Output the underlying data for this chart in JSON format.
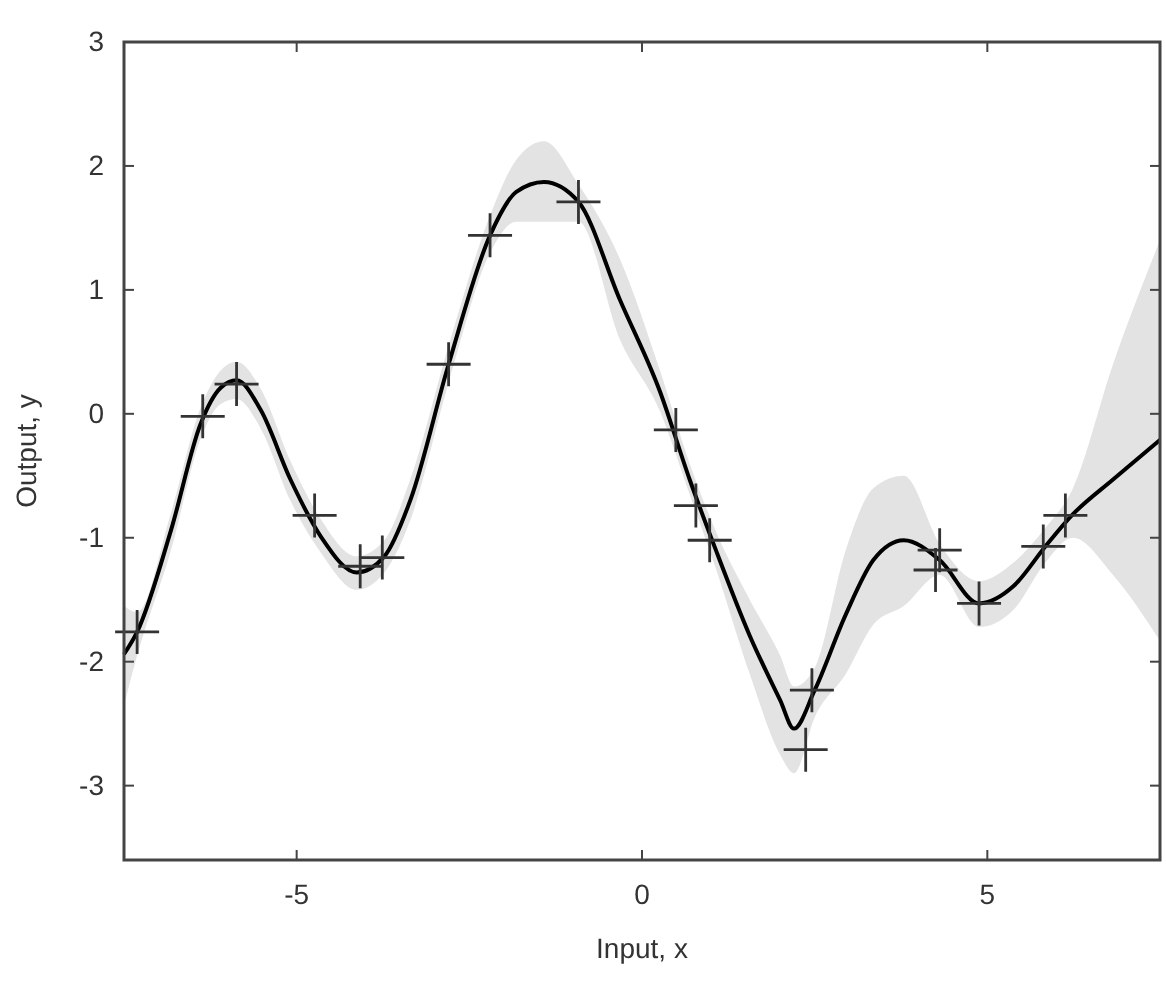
{
  "chart_data": {
    "type": "line",
    "xlabel": "Input, x",
    "ylabel": "Output, y",
    "xlim": [
      -7.5,
      7.5
    ],
    "ylim": [
      -3.6,
      3
    ],
    "xticks": [
      -5,
      0,
      5
    ],
    "yticks": [
      -3,
      -2,
      -1,
      0,
      1,
      2,
      3
    ],
    "grid": false,
    "series": [
      {
        "color": "#000000",
        "marker": "none",
        "line_style": "solid",
        "x": [
          -7.5,
          -7.31,
          -6.82,
          -6.39,
          -6.1,
          -5.87,
          -5.52,
          -5.09,
          -4.65,
          -4.13,
          -3.73,
          -3.35,
          -2.8,
          -2.2,
          -1.82,
          -1.42,
          -0.92,
          -0.32,
          0.26,
          0.69,
          1.07,
          1.56,
          2.0,
          2.2,
          2.5,
          2.95,
          3.35,
          3.79,
          4.31,
          4.88,
          5.38,
          5.84,
          6.24,
          6.82,
          7.5
        ],
        "values": [
          -1.94,
          -1.76,
          -0.94,
          -0.08,
          0.21,
          0.27,
          0.03,
          -0.53,
          -0.99,
          -1.28,
          -1.15,
          -0.69,
          0.4,
          1.44,
          1.79,
          1.87,
          1.71,
          0.92,
          0.18,
          -0.53,
          -1.1,
          -1.79,
          -2.31,
          -2.54,
          -2.23,
          -1.62,
          -1.18,
          -1.02,
          -1.18,
          -1.53,
          -1.39,
          -1.07,
          -0.81,
          -0.53,
          -0.21
        ],
        "lower": [
          -2.35,
          -1.95,
          -1.1,
          -0.2,
          0.08,
          0.12,
          -0.12,
          -0.7,
          -1.12,
          -1.42,
          -1.28,
          -0.85,
          0.25,
          1.3,
          1.55,
          1.55,
          1.55,
          0.6,
          0.02,
          -0.65,
          -1.25,
          -2.1,
          -2.75,
          -2.9,
          -2.45,
          -2.1,
          -1.7,
          -1.55,
          -1.3,
          -1.72,
          -1.58,
          -1.2,
          -1.0,
          -1.3,
          -1.83
        ],
        "upper": [
          -1.55,
          -1.6,
          -0.8,
          0.05,
          0.35,
          0.42,
          0.2,
          -0.38,
          -0.85,
          -1.15,
          -1.02,
          -0.52,
          0.55,
          1.6,
          2.05,
          2.2,
          1.85,
          1.25,
          0.35,
          -0.4,
          -0.95,
          -1.5,
          -1.95,
          -2.2,
          -2.05,
          -1.1,
          -0.6,
          -0.5,
          -1.05,
          -1.35,
          -1.2,
          -0.92,
          -0.6,
          0.4,
          1.4
        ]
      },
      {
        "type": "scatter",
        "color": "#333333",
        "marker": "cross",
        "x": [
          -7.31,
          -6.36,
          -5.87,
          -4.74,
          -4.08,
          -3.76,
          -2.8,
          -2.2,
          -0.92,
          0.49,
          0.78,
          0.98,
          2.46,
          2.37,
          4.31,
          4.25,
          4.88,
          5.81,
          6.13
        ],
        "values": [
          -1.76,
          -0.02,
          0.24,
          -0.82,
          -1.23,
          -1.16,
          0.4,
          1.44,
          1.71,
          -0.13,
          -0.74,
          -1.02,
          -2.23,
          -2.71,
          -1.1,
          -1.26,
          -1.53,
          -1.07,
          -0.82
        ]
      }
    ]
  }
}
